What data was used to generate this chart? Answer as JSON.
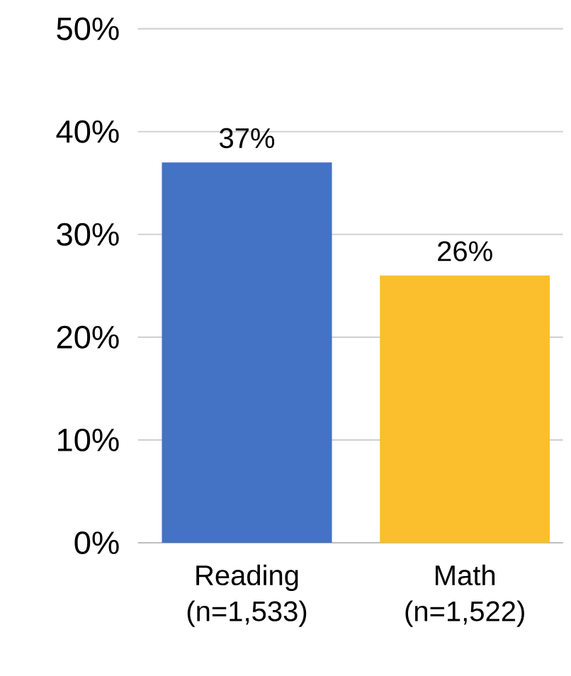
{
  "chart_data": {
    "type": "bar",
    "categories": [
      "Reading (n=1,533)",
      "Math (n=1,522)"
    ],
    "values": [
      37,
      26
    ],
    "colors": [
      "#4472c4",
      "#fbbf2d"
    ],
    "value_labels": [
      "37%",
      "26%"
    ],
    "ylim": [
      0,
      50
    ],
    "yticks": [
      {
        "value": 0,
        "label": "0%"
      },
      {
        "value": 10,
        "label": "10%"
      },
      {
        "value": 20,
        "label": "20%"
      },
      {
        "value": 30,
        "label": "30%"
      },
      {
        "value": 40,
        "label": "40%"
      },
      {
        "value": 50,
        "label": "50%"
      }
    ],
    "grid": "y"
  }
}
